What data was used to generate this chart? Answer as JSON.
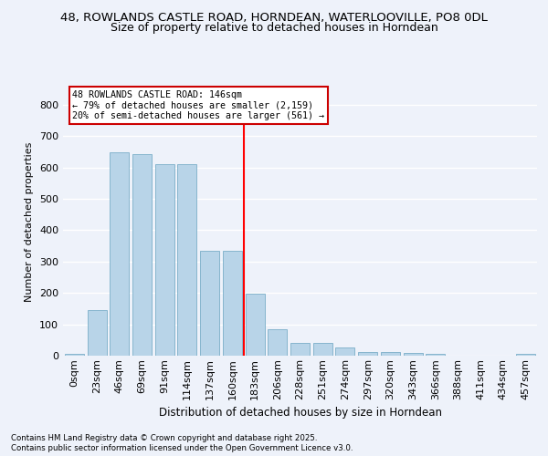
{
  "title_line1": "48, ROWLANDS CASTLE ROAD, HORNDEAN, WATERLOOVILLE, PO8 0DL",
  "title_line2": "Size of property relative to detached houses in Horndean",
  "xlabel": "Distribution of detached houses by size in Horndean",
  "ylabel": "Number of detached properties",
  "bar_labels": [
    "0sqm",
    "23sqm",
    "46sqm",
    "69sqm",
    "91sqm",
    "114sqm",
    "137sqm",
    "160sqm",
    "183sqm",
    "206sqm",
    "228sqm",
    "251sqm",
    "274sqm",
    "297sqm",
    "320sqm",
    "343sqm",
    "366sqm",
    "388sqm",
    "411sqm",
    "434sqm",
    "457sqm"
  ],
  "bar_values": [
    5,
    145,
    648,
    643,
    610,
    610,
    335,
    335,
    198,
    83,
    42,
    42,
    26,
    12,
    13,
    10,
    5,
    0,
    0,
    0,
    5
  ],
  "bar_color": "#b8d4e8",
  "bar_edge_color": "#7aaec8",
  "vline_x": 7.5,
  "vline_color": "red",
  "annotation_title": "48 ROWLANDS CASTLE ROAD: 146sqm",
  "annotation_line2": "← 79% of detached houses are smaller (2,159)",
  "annotation_line3": "20% of semi-detached houses are larger (561) →",
  "annotation_box_color": "white",
  "annotation_box_edge": "#cc0000",
  "footer_line1": "Contains HM Land Registry data © Crown copyright and database right 2025.",
  "footer_line2": "Contains public sector information licensed under the Open Government Licence v3.0.",
  "ylim": [
    0,
    850
  ],
  "yticks": [
    0,
    100,
    200,
    300,
    400,
    500,
    600,
    700,
    800
  ],
  "background_color": "#eef2fa",
  "grid_color": "#ffffff",
  "title_fontsize": 9.5,
  "subtitle_fontsize": 9,
  "axis_label_fontsize": 8,
  "tick_fontsize": 8,
  "footer_fontsize": 6.2
}
